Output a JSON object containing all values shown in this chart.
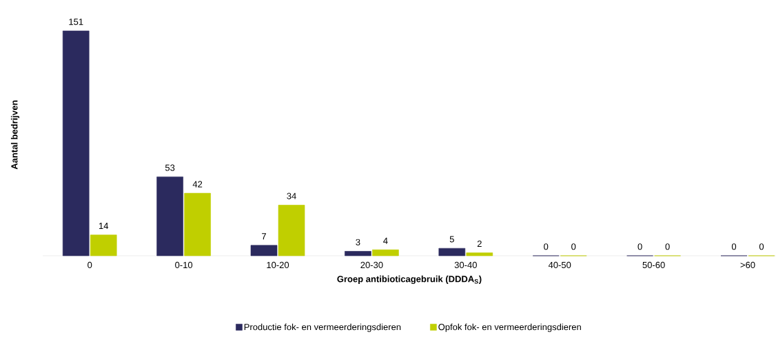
{
  "chart_data": {
    "type": "bar",
    "xlabel": "Groep antibioticagebruik (DDDA$_{S}$)",
    "ylabel": "Aantal bedrijven",
    "categories": [
      "0",
      "0-10",
      "10-20",
      "20-30",
      "30-40",
      "40-50",
      "50-60",
      ">60"
    ],
    "series": [
      {
        "name": "Productie fok- en vermeerderingsdieren",
        "color": "#2b2a5e",
        "values": [
          151,
          53,
          7,
          3,
          5,
          0,
          0,
          0
        ]
      },
      {
        "name": "Opfok fok- en vermeerderingsdieren",
        "color": "#c0cf00",
        "values": [
          14,
          42,
          34,
          4,
          2,
          0,
          0,
          0
        ]
      }
    ],
    "data_labels": true,
    "legend": "bottom",
    "grid": false
  }
}
